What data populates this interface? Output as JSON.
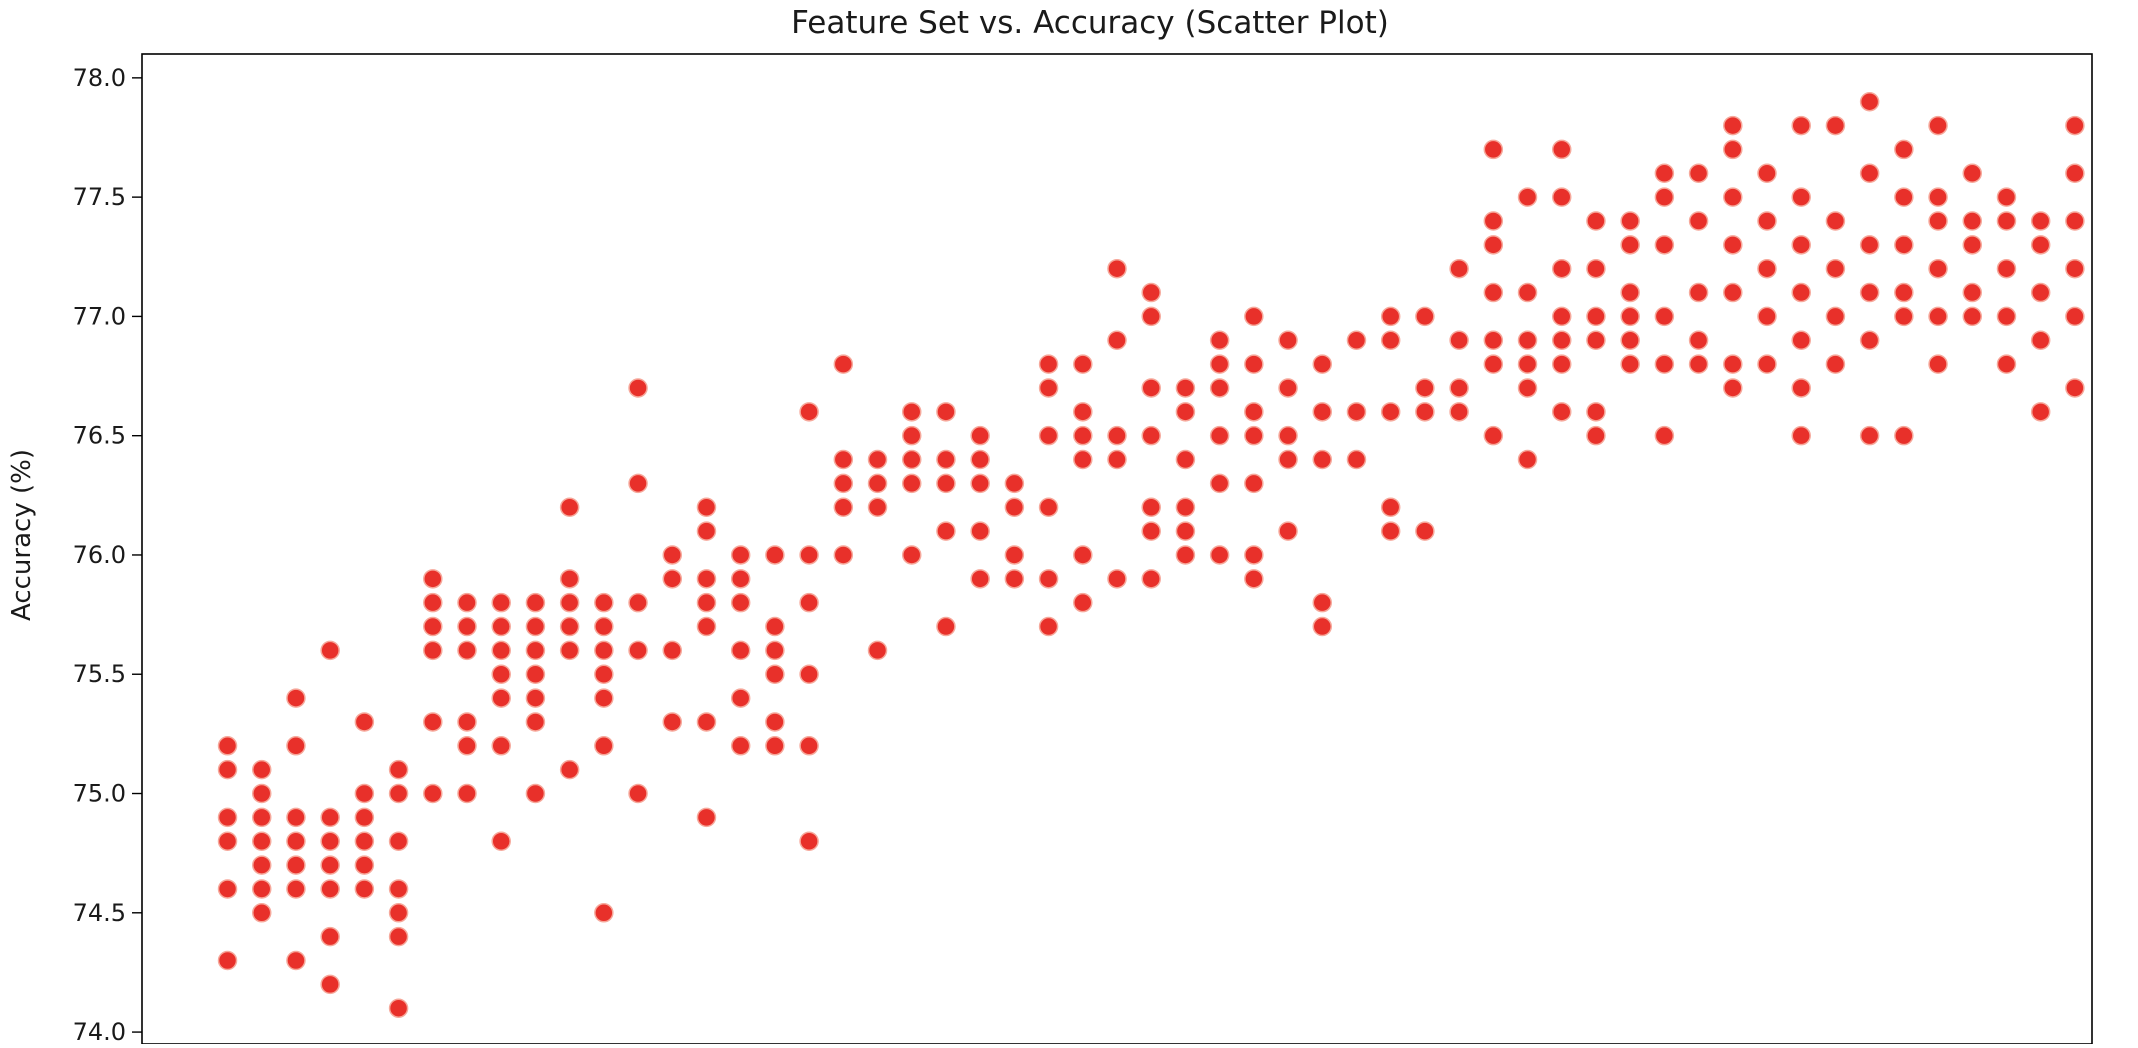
{
  "chart_data": {
    "type": "scatter",
    "title": "Feature Set vs. Accuracy (Scatter Plot)",
    "xlabel": "",
    "ylabel": "Accuracy (%)",
    "ylim": [
      73.95,
      78.1
    ],
    "xlim": [
      -2.5,
      54.5
    ],
    "yticks": [
      74.0,
      74.5,
      75.0,
      75.5,
      76.0,
      76.5,
      77.0,
      77.5,
      78.0
    ],
    "ytick_labels": [
      "74.0",
      "74.5",
      "75.0",
      "75.5",
      "76.0",
      "76.5",
      "77.0",
      "77.5",
      "78.0"
    ],
    "xticks_visible": false,
    "grid": false,
    "marker_color": "#e8302a",
    "marker_edge_color": "#f6a89b",
    "x_is_categorical_index": true,
    "series": [
      {
        "name": "",
        "points": [
          [
            0,
            75.2
          ],
          [
            0,
            75.1
          ],
          [
            0,
            74.9
          ],
          [
            0,
            74.8
          ],
          [
            0,
            74.6
          ],
          [
            0,
            74.3
          ],
          [
            1,
            75.1
          ],
          [
            1,
            74.9
          ],
          [
            1,
            74.8
          ],
          [
            1,
            74.7
          ],
          [
            1,
            74.6
          ],
          [
            1,
            74.5
          ],
          [
            1,
            75.0
          ],
          [
            2,
            75.4
          ],
          [
            2,
            74.9
          ],
          [
            2,
            74.8
          ],
          [
            2,
            74.7
          ],
          [
            2,
            74.6
          ],
          [
            2,
            74.3
          ],
          [
            2,
            75.2
          ],
          [
            3,
            75.6
          ],
          [
            3,
            74.9
          ],
          [
            3,
            74.8
          ],
          [
            3,
            74.7
          ],
          [
            3,
            74.6
          ],
          [
            3,
            74.4
          ],
          [
            3,
            74.2
          ],
          [
            4,
            75.3
          ],
          [
            4,
            74.9
          ],
          [
            4,
            74.8
          ],
          [
            4,
            74.7
          ],
          [
            4,
            74.6
          ],
          [
            4,
            75.0
          ],
          [
            5,
            75.1
          ],
          [
            5,
            75.0
          ],
          [
            5,
            74.8
          ],
          [
            5,
            74.6
          ],
          [
            5,
            74.5
          ],
          [
            5,
            74.4
          ],
          [
            5,
            74.1
          ],
          [
            6,
            75.9
          ],
          [
            6,
            75.8
          ],
          [
            6,
            75.6
          ],
          [
            6,
            75.3
          ],
          [
            6,
            75.0
          ],
          [
            6,
            75.7
          ],
          [
            7,
            75.7
          ],
          [
            7,
            75.6
          ],
          [
            7,
            75.3
          ],
          [
            7,
            75.2
          ],
          [
            7,
            75.0
          ],
          [
            7,
            75.8
          ],
          [
            8,
            75.8
          ],
          [
            8,
            75.7
          ],
          [
            8,
            75.5
          ],
          [
            8,
            75.4
          ],
          [
            8,
            75.2
          ],
          [
            8,
            74.8
          ],
          [
            8,
            75.6
          ],
          [
            9,
            75.8
          ],
          [
            9,
            75.6
          ],
          [
            9,
            75.5
          ],
          [
            9,
            75.4
          ],
          [
            9,
            75.3
          ],
          [
            9,
            75.0
          ],
          [
            9,
            75.7
          ],
          [
            10,
            76.2
          ],
          [
            10,
            75.9
          ],
          [
            10,
            75.7
          ],
          [
            10,
            75.6
          ],
          [
            10,
            75.1
          ],
          [
            10,
            75.8
          ],
          [
            11,
            75.8
          ],
          [
            11,
            75.7
          ],
          [
            11,
            75.6
          ],
          [
            11,
            75.5
          ],
          [
            11,
            75.4
          ],
          [
            11,
            75.2
          ],
          [
            11,
            74.5
          ],
          [
            12,
            76.7
          ],
          [
            12,
            76.3
          ],
          [
            12,
            75.8
          ],
          [
            12,
            75.6
          ],
          [
            12,
            75.0
          ],
          [
            13,
            76.0
          ],
          [
            13,
            75.9
          ],
          [
            13,
            75.6
          ],
          [
            13,
            75.3
          ],
          [
            14,
            76.2
          ],
          [
            14,
            76.1
          ],
          [
            14,
            75.9
          ],
          [
            14,
            75.8
          ],
          [
            14,
            75.7
          ],
          [
            14,
            75.3
          ],
          [
            14,
            74.9
          ],
          [
            15,
            76.0
          ],
          [
            15,
            75.9
          ],
          [
            15,
            75.8
          ],
          [
            15,
            75.6
          ],
          [
            15,
            75.4
          ],
          [
            15,
            75.2
          ],
          [
            16,
            76.0
          ],
          [
            16,
            75.7
          ],
          [
            16,
            75.5
          ],
          [
            16,
            75.3
          ],
          [
            16,
            75.2
          ],
          [
            16,
            75.6
          ],
          [
            17,
            76.6
          ],
          [
            17,
            76.0
          ],
          [
            17,
            75.8
          ],
          [
            17,
            75.5
          ],
          [
            17,
            75.2
          ],
          [
            17,
            74.8
          ],
          [
            18,
            76.8
          ],
          [
            18,
            76.4
          ],
          [
            18,
            76.3
          ],
          [
            18,
            76.2
          ],
          [
            18,
            76.0
          ],
          [
            19,
            76.4
          ],
          [
            19,
            76.3
          ],
          [
            19,
            76.2
          ],
          [
            19,
            75.6
          ],
          [
            20,
            76.6
          ],
          [
            20,
            76.5
          ],
          [
            20,
            76.4
          ],
          [
            20,
            76.3
          ],
          [
            20,
            76.0
          ],
          [
            21,
            76.6
          ],
          [
            21,
            76.4
          ],
          [
            21,
            76.3
          ],
          [
            21,
            76.1
          ],
          [
            21,
            75.7
          ],
          [
            22,
            76.5
          ],
          [
            22,
            76.4
          ],
          [
            22,
            76.3
          ],
          [
            22,
            76.1
          ],
          [
            22,
            75.9
          ],
          [
            23,
            76.3
          ],
          [
            23,
            76.2
          ],
          [
            23,
            76.0
          ],
          [
            23,
            75.9
          ],
          [
            24,
            76.8
          ],
          [
            24,
            76.7
          ],
          [
            24,
            76.5
          ],
          [
            24,
            76.2
          ],
          [
            24,
            75.9
          ],
          [
            24,
            75.7
          ],
          [
            25,
            76.8
          ],
          [
            25,
            76.6
          ],
          [
            25,
            76.5
          ],
          [
            25,
            76.4
          ],
          [
            25,
            76.0
          ],
          [
            25,
            75.8
          ],
          [
            26,
            77.2
          ],
          [
            26,
            76.9
          ],
          [
            26,
            76.5
          ],
          [
            26,
            76.4
          ],
          [
            26,
            75.9
          ],
          [
            27,
            77.1
          ],
          [
            27,
            77.0
          ],
          [
            27,
            76.7
          ],
          [
            27,
            76.5
          ],
          [
            27,
            76.2
          ],
          [
            27,
            76.1
          ],
          [
            27,
            75.9
          ],
          [
            28,
            76.7
          ],
          [
            28,
            76.6
          ],
          [
            28,
            76.4
          ],
          [
            28,
            76.2
          ],
          [
            28,
            76.1
          ],
          [
            28,
            76.0
          ],
          [
            29,
            76.9
          ],
          [
            29,
            76.8
          ],
          [
            29,
            76.7
          ],
          [
            29,
            76.5
          ],
          [
            29,
            76.3
          ],
          [
            29,
            76.0
          ],
          [
            30,
            77.0
          ],
          [
            30,
            76.8
          ],
          [
            30,
            76.6
          ],
          [
            30,
            76.5
          ],
          [
            30,
            76.3
          ],
          [
            30,
            76.0
          ],
          [
            30,
            75.9
          ],
          [
            31,
            76.9
          ],
          [
            31,
            76.7
          ],
          [
            31,
            76.5
          ],
          [
            31,
            76.4
          ],
          [
            31,
            76.1
          ],
          [
            32,
            76.8
          ],
          [
            32,
            76.6
          ],
          [
            32,
            76.4
          ],
          [
            32,
            75.8
          ],
          [
            32,
            75.7
          ],
          [
            33,
            76.9
          ],
          [
            33,
            76.6
          ],
          [
            33,
            76.4
          ],
          [
            34,
            77.0
          ],
          [
            34,
            76.9
          ],
          [
            34,
            76.6
          ],
          [
            34,
            76.2
          ],
          [
            34,
            76.1
          ],
          [
            35,
            77.0
          ],
          [
            35,
            76.7
          ],
          [
            35,
            76.6
          ],
          [
            35,
            76.1
          ],
          [
            36,
            77.2
          ],
          [
            36,
            76.9
          ],
          [
            36,
            76.7
          ],
          [
            36,
            76.6
          ],
          [
            37,
            77.7
          ],
          [
            37,
            77.4
          ],
          [
            37,
            77.3
          ],
          [
            37,
            77.1
          ],
          [
            37,
            76.9
          ],
          [
            37,
            76.8
          ],
          [
            37,
            76.5
          ],
          [
            38,
            77.5
          ],
          [
            38,
            77.1
          ],
          [
            38,
            76.9
          ],
          [
            38,
            76.8
          ],
          [
            38,
            76.7
          ],
          [
            38,
            76.4
          ],
          [
            39,
            77.7
          ],
          [
            39,
            77.5
          ],
          [
            39,
            77.2
          ],
          [
            39,
            77.0
          ],
          [
            39,
            76.9
          ],
          [
            39,
            76.8
          ],
          [
            39,
            76.6
          ],
          [
            40,
            77.4
          ],
          [
            40,
            77.2
          ],
          [
            40,
            77.0
          ],
          [
            40,
            76.9
          ],
          [
            40,
            76.6
          ],
          [
            40,
            76.5
          ],
          [
            41,
            77.4
          ],
          [
            41,
            77.3
          ],
          [
            41,
            77.1
          ],
          [
            41,
            77.0
          ],
          [
            41,
            76.9
          ],
          [
            41,
            76.8
          ],
          [
            42,
            77.6
          ],
          [
            42,
            77.5
          ],
          [
            42,
            77.3
          ],
          [
            42,
            77.0
          ],
          [
            42,
            76.8
          ],
          [
            42,
            76.5
          ],
          [
            43,
            77.6
          ],
          [
            43,
            77.4
          ],
          [
            43,
            77.1
          ],
          [
            43,
            76.9
          ],
          [
            43,
            76.8
          ],
          [
            44,
            77.8
          ],
          [
            44,
            77.7
          ],
          [
            44,
            77.5
          ],
          [
            44,
            77.3
          ],
          [
            44,
            77.1
          ],
          [
            44,
            76.8
          ],
          [
            44,
            76.7
          ],
          [
            45,
            77.6
          ],
          [
            45,
            77.4
          ],
          [
            45,
            77.2
          ],
          [
            45,
            77.0
          ],
          [
            45,
            76.8
          ],
          [
            46,
            77.8
          ],
          [
            46,
            77.5
          ],
          [
            46,
            77.3
          ],
          [
            46,
            77.1
          ],
          [
            46,
            76.9
          ],
          [
            46,
            76.7
          ],
          [
            46,
            76.5
          ],
          [
            47,
            77.8
          ],
          [
            47,
            77.4
          ],
          [
            47,
            77.2
          ],
          [
            47,
            77.0
          ],
          [
            47,
            76.8
          ],
          [
            48,
            77.9
          ],
          [
            48,
            77.6
          ],
          [
            48,
            77.3
          ],
          [
            48,
            77.1
          ],
          [
            48,
            76.9
          ],
          [
            48,
            76.5
          ],
          [
            49,
            77.7
          ],
          [
            49,
            77.5
          ],
          [
            49,
            77.3
          ],
          [
            49,
            77.1
          ],
          [
            49,
            77.0
          ],
          [
            49,
            76.5
          ],
          [
            50,
            77.8
          ],
          [
            50,
            77.5
          ],
          [
            50,
            77.4
          ],
          [
            50,
            77.2
          ],
          [
            50,
            77.0
          ],
          [
            50,
            76.8
          ],
          [
            51,
            77.6
          ],
          [
            51,
            77.4
          ],
          [
            51,
            77.3
          ],
          [
            51,
            77.1
          ],
          [
            51,
            77.0
          ],
          [
            52,
            77.5
          ],
          [
            52,
            77.4
          ],
          [
            52,
            77.2
          ],
          [
            52,
            77.0
          ],
          [
            52,
            76.8
          ],
          [
            53,
            77.4
          ],
          [
            53,
            77.3
          ],
          [
            53,
            77.1
          ],
          [
            53,
            76.9
          ],
          [
            53,
            76.6
          ],
          [
            54,
            77.8
          ],
          [
            54,
            77.6
          ],
          [
            54,
            77.4
          ],
          [
            54,
            77.2
          ],
          [
            54,
            77.0
          ],
          [
            54,
            76.7
          ]
        ]
      }
    ]
  }
}
